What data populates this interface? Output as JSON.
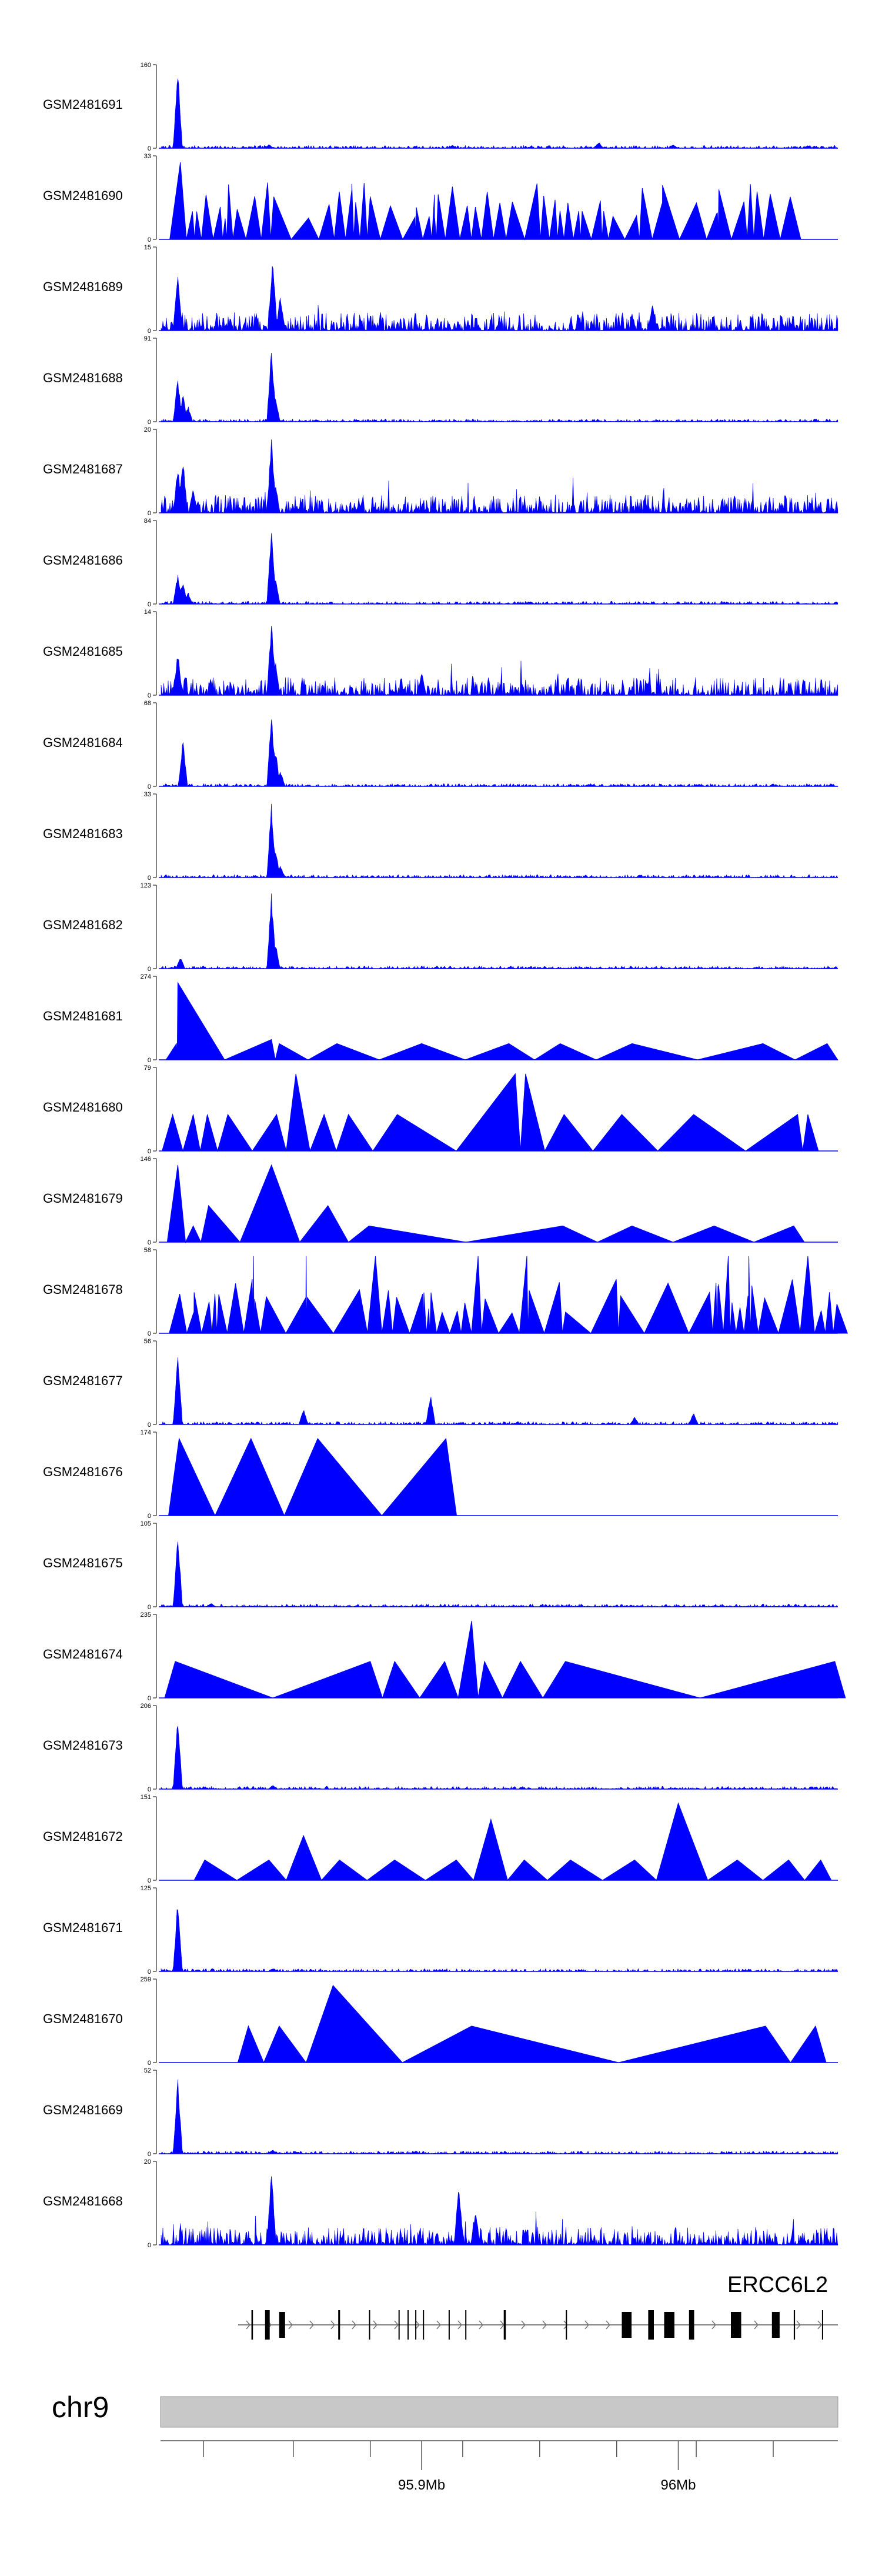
{
  "chart_data": {
    "type": "area",
    "colors": {
      "signal": "#0000ff",
      "ideogram": "#c8c8c8",
      "gene": "#000000"
    },
    "region": {
      "chromosome": "chr9",
      "start_mb": 95.7985,
      "end_mb": 96.0622
    },
    "tracks": [
      {
        "name": "GSM2481691",
        "ymax": "160",
        "pattern": "sparse",
        "peaks": [
          [
            95.805,
            1.0
          ],
          [
            95.8405,
            0.05
          ],
          [
            95.912,
            0.04
          ],
          [
            95.969,
            0.08
          ],
          [
            95.998,
            0.05
          ]
        ]
      },
      {
        "name": "GSM2481690",
        "ymax": "33",
        "pattern": "triangles-dense",
        "peaks": [
          [
            95.806,
            0.95
          ],
          [
            95.816,
            0.55
          ],
          [
            95.84,
            0.7
          ],
          [
            95.905,
            0.55
          ],
          [
            95.912,
            0.65
          ],
          [
            95.957,
            0.45
          ]
        ]
      },
      {
        "name": "GSM2481689",
        "ymax": "15",
        "pattern": "noisy",
        "peaks": [
          [
            95.805,
            0.75
          ],
          [
            95.842,
            0.95
          ],
          [
            95.845,
            0.45
          ],
          [
            95.99,
            0.35
          ]
        ]
      },
      {
        "name": "GSM2481688",
        "ymax": "91",
        "pattern": "sparse",
        "peaks": [
          [
            95.805,
            0.55
          ],
          [
            95.807,
            0.35
          ],
          [
            95.809,
            0.2
          ],
          [
            95.8415,
            0.95
          ],
          [
            95.843,
            0.35
          ],
          [
            95.859,
            0.03
          ]
        ]
      },
      {
        "name": "GSM2481687",
        "ymax": "20",
        "pattern": "noisy",
        "peaks": [
          [
            95.805,
            0.6
          ],
          [
            95.807,
            0.7
          ],
          [
            95.811,
            0.3
          ],
          [
            95.8415,
            0.95
          ],
          [
            95.843,
            0.4
          ]
        ]
      },
      {
        "name": "GSM2481686",
        "ymax": "84",
        "pattern": "sparse",
        "peaks": [
          [
            95.805,
            0.4
          ],
          [
            95.807,
            0.3
          ],
          [
            95.809,
            0.15
          ],
          [
            95.8415,
            0.95
          ],
          [
            95.843,
            0.35
          ]
        ]
      },
      {
        "name": "GSM2481685",
        "ymax": "14",
        "pattern": "noisy",
        "peaks": [
          [
            95.805,
            0.55
          ],
          [
            95.8415,
            0.95
          ],
          [
            95.843,
            0.45
          ],
          [
            95.9,
            0.3
          ]
        ]
      },
      {
        "name": "GSM2481684",
        "ymax": "68",
        "pattern": "sparse",
        "peaks": [
          [
            95.807,
            0.6
          ],
          [
            95.8415,
            0.95
          ],
          [
            95.843,
            0.5
          ],
          [
            95.845,
            0.2
          ]
        ]
      },
      {
        "name": "GSM2481683",
        "ymax": "33",
        "pattern": "sparse",
        "peaks": [
          [
            95.8415,
            0.95
          ],
          [
            95.843,
            0.4
          ],
          [
            95.845,
            0.15
          ]
        ]
      },
      {
        "name": "GSM2481682",
        "ymax": "123",
        "pattern": "sparse",
        "peaks": [
          [
            95.806,
            0.15
          ],
          [
            95.8415,
            0.95
          ],
          [
            95.843,
            0.35
          ]
        ]
      },
      {
        "name": "GSM2481681",
        "ymax": "274",
        "pattern": "triangles",
        "peaks": [
          [
            95.805,
            0.95
          ],
          [
            95.8045,
            0.2
          ],
          [
            95.8415,
            0.25
          ],
          [
            95.8445,
            0.2
          ],
          [
            95.867,
            0.2
          ],
          [
            95.9,
            0.2
          ],
          [
            95.934,
            0.2
          ],
          [
            95.954,
            0.2
          ],
          [
            95.982,
            0.2
          ],
          [
            96.033,
            0.2
          ],
          [
            96.058,
            0.2
          ]
        ]
      },
      {
        "name": "GSM2481680",
        "ymax": "79",
        "pattern": "triangles",
        "peaks": [
          [
            95.803,
            0.45
          ],
          [
            95.811,
            0.45
          ],
          [
            95.8165,
            0.45
          ],
          [
            95.8245,
            0.45
          ],
          [
            95.8435,
            0.45
          ],
          [
            95.851,
            0.95
          ],
          [
            95.862,
            0.45
          ],
          [
            95.8715,
            0.45
          ],
          [
            95.8905,
            0.45
          ],
          [
            95.9365,
            0.95
          ],
          [
            95.9405,
            0.95
          ],
          [
            95.9555,
            0.45
          ],
          [
            95.978,
            0.45
          ],
          [
            96.006,
            0.45
          ],
          [
            96.0465,
            0.45
          ],
          [
            96.0505,
            0.45
          ]
        ]
      },
      {
        "name": "GSM2481679",
        "ymax": "146",
        "pattern": "triangles",
        "peaks": [
          [
            95.805,
            0.95
          ],
          [
            95.811,
            0.2
          ],
          [
            95.817,
            0.45
          ],
          [
            95.8415,
            0.95
          ],
          [
            95.8635,
            0.45
          ],
          [
            95.8795,
            0.2
          ],
          [
            95.955,
            0.2
          ],
          [
            95.982,
            0.2
          ],
          [
            96.014,
            0.2
          ],
          [
            96.045,
            0.2
          ]
        ]
      },
      {
        "name": "GSM2481678",
        "ymax": "58",
        "pattern": "triangles-dense",
        "peaks": [
          [
            95.8345,
            0.95
          ],
          [
            95.855,
            0.95
          ],
          [
            95.882,
            0.95
          ],
          [
            95.922,
            0.95
          ],
          [
            95.941,
            0.95
          ],
          [
            96.0195,
            0.95
          ],
          [
            96.0275,
            0.95
          ],
          [
            96.0505,
            0.95
          ]
        ]
      },
      {
        "name": "GSM2481677",
        "ymax": "56",
        "pattern": "sparse",
        "peaks": [
          [
            95.805,
            0.95
          ],
          [
            95.854,
            0.2
          ],
          [
            95.9035,
            0.4
          ],
          [
            95.983,
            0.1
          ],
          [
            96.006,
            0.15
          ]
        ]
      },
      {
        "name": "GSM2481676",
        "ymax": "174",
        "pattern": "triangles",
        "peaks": [
          [
            95.8055,
            0.95
          ],
          [
            95.8335,
            0.95
          ],
          [
            95.8595,
            0.95
          ],
          [
            95.9095,
            0.95
          ]
        ]
      },
      {
        "name": "GSM2481675",
        "ymax": "105",
        "pattern": "sparse",
        "peaks": [
          [
            95.805,
            0.95
          ],
          [
            95.818,
            0.05
          ]
        ]
      },
      {
        "name": "GSM2481674",
        "ymax": "235",
        "pattern": "triangles",
        "peaks": [
          [
            95.804,
            0.45
          ],
          [
            95.88,
            0.45
          ],
          [
            95.8895,
            0.45
          ],
          [
            95.909,
            0.45
          ],
          [
            95.9195,
            0.95
          ],
          [
            95.9245,
            0.45
          ],
          [
            95.9385,
            0.45
          ],
          [
            95.956,
            0.45
          ],
          [
            96.061,
            0.45
          ]
        ]
      },
      {
        "name": "GSM2481673",
        "ymax": "206",
        "pattern": "sparse",
        "peaks": [
          [
            95.805,
            0.95
          ],
          [
            95.842,
            0.05
          ]
        ]
      },
      {
        "name": "GSM2481672",
        "ymax": "151",
        "pattern": "triangles",
        "peaks": [
          [
            95.8155,
            0.25
          ],
          [
            95.8405,
            0.25
          ],
          [
            95.854,
            0.55
          ],
          [
            95.868,
            0.25
          ],
          [
            95.8895,
            0.25
          ],
          [
            95.9135,
            0.25
          ],
          [
            95.927,
            0.75
          ],
          [
            95.94,
            0.25
          ],
          [
            95.958,
            0.25
          ],
          [
            95.983,
            0.25
          ],
          [
            96.0,
            0.95
          ],
          [
            96.023,
            0.25
          ],
          [
            96.043,
            0.25
          ],
          [
            96.0555,
            0.25
          ]
        ]
      },
      {
        "name": "GSM2481671",
        "ymax": "125",
        "pattern": "sparse",
        "peaks": [
          [
            95.805,
            0.95
          ],
          [
            95.842,
            0.04
          ]
        ]
      },
      {
        "name": "GSM2481670",
        "ymax": "259",
        "pattern": "triangles",
        "peaks": [
          [
            95.8325,
            0.45
          ],
          [
            95.8445,
            0.45
          ],
          [
            95.8655,
            0.95
          ],
          [
            95.9195,
            0.45
          ],
          [
            96.034,
            0.45
          ],
          [
            96.0535,
            0.45
          ]
        ]
      },
      {
        "name": "GSM2481669",
        "ymax": "52",
        "pattern": "sparse",
        "peaks": [
          [
            95.805,
            0.95
          ],
          [
            95.842,
            0.05
          ]
        ]
      },
      {
        "name": "GSM2481668",
        "ymax": "20",
        "pattern": "noisy",
        "peaks": [
          [
            95.8415,
            0.95
          ],
          [
            95.9145,
            0.8
          ],
          [
            95.921,
            0.45
          ]
        ]
      }
    ],
    "gene": {
      "name": "ERCC6L2",
      "strand": "+",
      "span_mb": [
        95.8285,
        96.0622
      ],
      "exons_mb": [
        [
          95.8337,
          95.8343
        ],
        [
          95.839,
          95.8408
        ],
        [
          95.8445,
          95.8468
        ],
        [
          95.8675,
          95.8682
        ],
        [
          95.8795,
          95.8799
        ],
        [
          95.891,
          95.8913
        ],
        [
          95.8945,
          95.8948
        ],
        [
          95.8975,
          95.8978
        ],
        [
          95.9005,
          95.9008
        ],
        [
          95.9105,
          95.9108
        ],
        [
          95.917,
          95.9173
        ],
        [
          95.932,
          95.9328
        ],
        [
          95.9562,
          95.9565
        ],
        [
          95.978,
          95.9818
        ],
        [
          95.9883,
          95.9905
        ],
        [
          95.9945,
          95.9985
        ],
        [
          96.0042,
          96.0062
        ],
        [
          96.0205,
          96.0245
        ],
        [
          96.0365,
          96.0395
        ],
        [
          96.045,
          96.0455
        ],
        [
          96.056,
          96.0563
        ]
      ]
    },
    "axis": {
      "chromosome_label": "chr9",
      "minor_ticks_mb": [
        95.815,
        95.85,
        95.88,
        95.916,
        95.946,
        95.976,
        96.007,
        96.037
      ],
      "labeled_ticks": [
        {
          "mb": 95.9,
          "label": "95.9Mb"
        },
        {
          "mb": 96.0,
          "label": "96Mb"
        }
      ]
    }
  }
}
